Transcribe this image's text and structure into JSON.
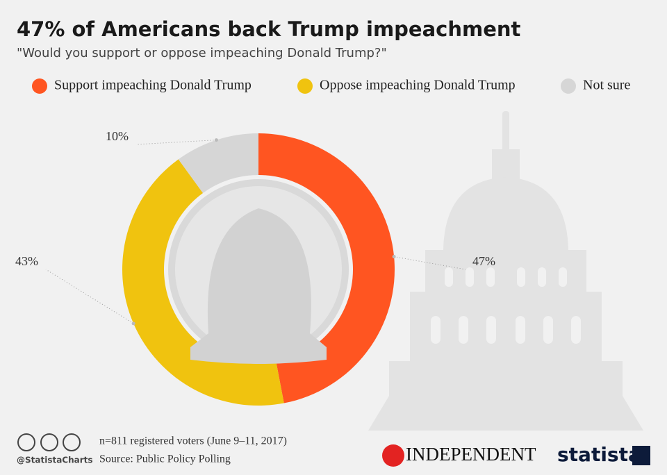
{
  "chart_data": {
    "type": "donut",
    "title": "47% of Americans back Trump impeachment",
    "subtitle": "\"Would you support or oppose impeaching Donald Trump?\"",
    "categories": [
      "Support impeaching Donald Trump",
      "Oppose impeaching Donald Trump",
      "Not sure"
    ],
    "values": [
      47,
      43,
      10
    ],
    "value_labels": [
      "47%",
      "43%",
      "10%"
    ],
    "colors": [
      "#ff5521",
      "#f0c30f",
      "#d6d6d6"
    ],
    "note": "n=811 registered voters (June 9–11, 2017)",
    "source": "Source: Public Policy Polling",
    "handle": "@StatistaCharts",
    "partner": "INDEPENDENT",
    "brand": "statista"
  }
}
